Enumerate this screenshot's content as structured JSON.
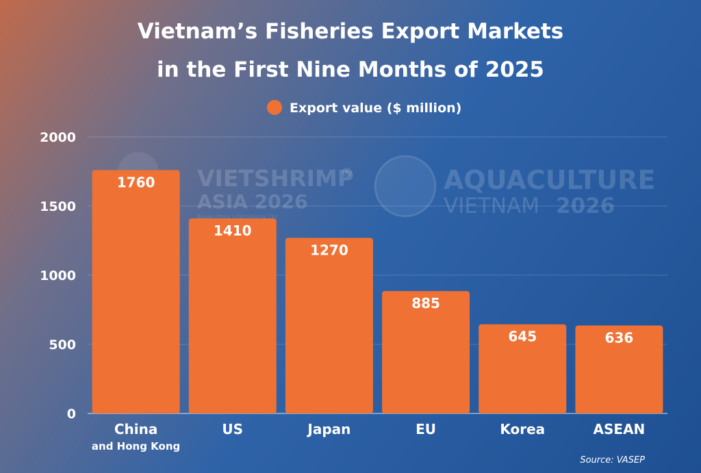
{
  "chart_data": {
    "type": "bar",
    "title_lines": [
      "Vietnam’s Fisheries Export Markets",
      "in the First Nine Months of 2025"
    ],
    "legend": {
      "label": "Export value ($ million)",
      "color": "#ef7234",
      "placement": "top-center"
    },
    "categories": [
      {
        "label": "China",
        "sublabel": "and Hong Kong"
      },
      {
        "label": "US",
        "sublabel": ""
      },
      {
        "label": "Japan",
        "sublabel": ""
      },
      {
        "label": "EU",
        "sublabel": ""
      },
      {
        "label": "Korea",
        "sublabel": ""
      },
      {
        "label": "ASEAN",
        "sublabel": ""
      }
    ],
    "series": [
      {
        "name": "Export value ($ million)",
        "values": [
          1760,
          1410,
          1270,
          885,
          645,
          636
        ]
      }
    ],
    "data_labels": [
      "1760",
      "1410",
      "1270",
      "885",
      "645",
      "636"
    ],
    "yticks": [
      "0",
      "500",
      "1000",
      "1500",
      "2000"
    ],
    "ylim": [
      0,
      2000
    ],
    "grid": true,
    "bar_color": "#ef7234",
    "source": "Source:  VASEP"
  },
  "watermarks": {
    "left_line1": "VIETSHRIMP",
    "left_reg": "®",
    "left_line2": "ASIA 2026",
    "left_line3": "Aquaculture International Fair",
    "right_line1": "AQUACULTURE",
    "right_line2a": "VIETNAM",
    "right_line2b": "2026"
  }
}
